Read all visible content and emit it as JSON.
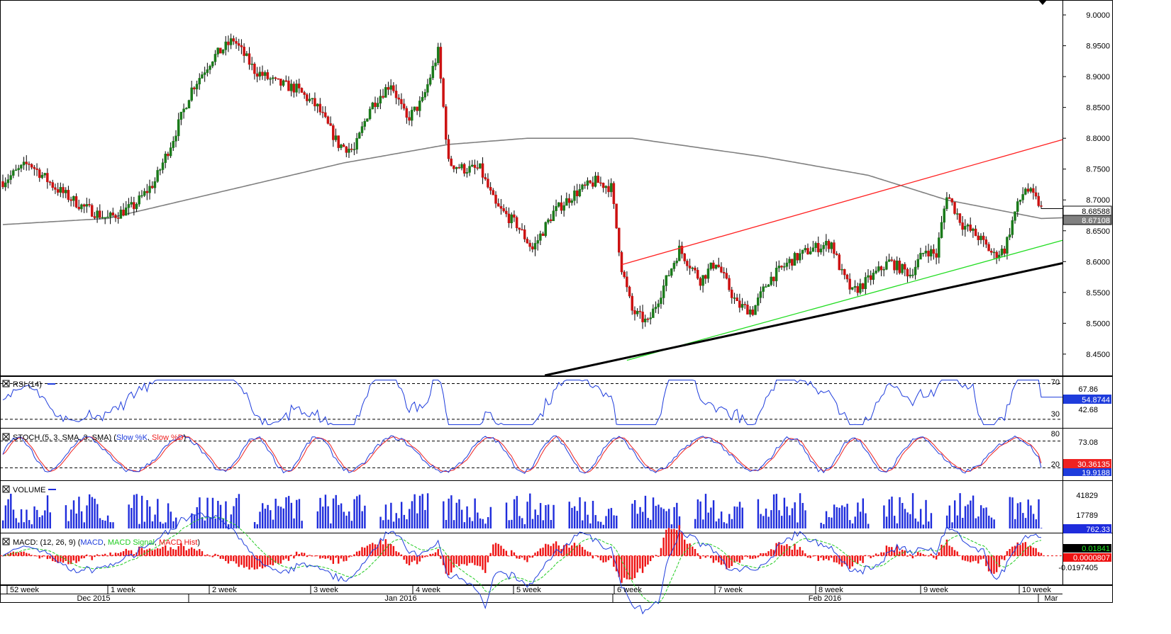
{
  "main": {
    "y_ticks": [
      "9.0000",
      "8.9500",
      "8.9000",
      "8.8500",
      "8.8000",
      "8.7500",
      "8.7000",
      "8.6500",
      "8.6000",
      "8.5500",
      "8.5000",
      "8.4500"
    ],
    "y_range": [
      8.42,
      9.015
    ],
    "last_price": "8.68588",
    "ma_value": "8.67108",
    "last_price_num": 8.68588,
    "ma_value_num": 8.67108,
    "colors": {
      "bull": "#1a7a1a",
      "bear": "#cc1111",
      "ma": "#808080",
      "red_line": "#ff2020",
      "green_line": "#22dd22",
      "black_line": "#000000"
    }
  },
  "rsi": {
    "label": "RSI (14)",
    "levels": [
      "70",
      "30"
    ],
    "axis_labels": [
      "67.86",
      "42.68"
    ],
    "value": "54.8744",
    "value_num": 54.87,
    "range": [
      22,
      76
    ],
    "color": "#1e3cdc"
  },
  "stoch": {
    "label_prefix": "STOCH (5, 3, SMA, 3, SMA) (",
    "k_label": "Slow %K",
    "d_label": "Slow %D",
    "label_suffix": ")",
    "levels": [
      "80",
      "20"
    ],
    "axis_label": "73.08",
    "value_d": "30.36135",
    "value_k": "19.9188",
    "range": [
      -5,
      105
    ],
    "colors": {
      "k": "#1e3cdc",
      "d": "#ee2222"
    }
  },
  "volume": {
    "label": "VOLUME",
    "axis_labels": [
      "41829",
      "17789"
    ],
    "value": "762.33",
    "max": 60000,
    "color": "#1e2cdc"
  },
  "macd": {
    "label_prefix": "MACD: (12, 26, 9) (",
    "macd_label": "MACD",
    "signal_label": "MACD Signal",
    "hist_label": "MACD Hist",
    "label_suffix": ")",
    "values": [
      "0.01841",
      "0.0000807",
      "-0.0197405"
    ],
    "range": [
      -0.04,
      0.03
    ],
    "colors": {
      "macd": "#1e3cdc",
      "signal": "#22cc22",
      "hist": "#ee1111"
    }
  },
  "x_axis": {
    "weeks": [
      "52 week",
      "1 week",
      "2 week",
      "3 week",
      "4 week",
      "5 week",
      "6 week",
      "7 week",
      "8 week",
      "9 week",
      "10 week"
    ],
    "months": [
      "Dec 2015",
      "Jan 2016",
      "Feb 2016",
      "Mar"
    ]
  },
  "chart_data": {
    "type": "candlestick",
    "instrument_axis": "price",
    "anchors_x_y": [
      [
        0,
        8.73
      ],
      [
        10,
        8.76
      ],
      [
        20,
        8.72
      ],
      [
        30,
        8.69
      ],
      [
        40,
        8.67
      ],
      [
        50,
        8.69
      ],
      [
        58,
        8.73
      ],
      [
        65,
        8.8
      ],
      [
        72,
        8.88
      ],
      [
        80,
        8.93
      ],
      [
        88,
        8.96
      ],
      [
        96,
        8.91
      ],
      [
        104,
        8.89
      ],
      [
        112,
        8.88
      ],
      [
        120,
        8.85
      ],
      [
        128,
        8.79
      ],
      [
        134,
        8.78
      ],
      [
        140,
        8.85
      ],
      [
        148,
        8.89
      ],
      [
        154,
        8.83
      ],
      [
        160,
        8.86
      ],
      [
        166,
        8.94
      ],
      [
        170,
        8.76
      ],
      [
        176,
        8.75
      ],
      [
        182,
        8.75
      ],
      [
        188,
        8.69
      ],
      [
        196,
        8.66
      ],
      [
        202,
        8.62
      ],
      [
        210,
        8.68
      ],
      [
        218,
        8.71
      ],
      [
        226,
        8.73
      ],
      [
        232,
        8.72
      ],
      [
        236,
        8.59
      ],
      [
        240,
        8.52
      ],
      [
        246,
        8.5
      ],
      [
        252,
        8.56
      ],
      [
        258,
        8.62
      ],
      [
        266,
        8.57
      ],
      [
        272,
        8.6
      ],
      [
        280,
        8.53
      ],
      [
        286,
        8.52
      ],
      [
        292,
        8.57
      ],
      [
        300,
        8.6
      ],
      [
        308,
        8.62
      ],
      [
        316,
        8.63
      ],
      [
        320,
        8.58
      ],
      [
        324,
        8.55
      ],
      [
        330,
        8.57
      ],
      [
        338,
        8.6
      ],
      [
        346,
        8.58
      ],
      [
        352,
        8.62
      ],
      [
        356,
        8.61
      ],
      [
        360,
        8.71
      ],
      [
        366,
        8.66
      ],
      [
        372,
        8.64
      ],
      [
        378,
        8.61
      ],
      [
        382,
        8.62
      ],
      [
        386,
        8.68
      ],
      [
        390,
        8.72
      ],
      [
        396,
        8.69
      ]
    ],
    "candle_count": 397,
    "trendlines": [
      {
        "name": "red",
        "from": [
          236,
          8.595
        ],
        "to": [
          396,
          8.788
        ]
      },
      {
        "name": "green",
        "from": [
          238,
          8.44
        ],
        "to": [
          396,
          8.625
        ]
      },
      {
        "name": "black",
        "from": [
          190,
          8.4
        ],
        "to": [
          396,
          8.59
        ]
      }
    ],
    "ma200_anchors": [
      [
        0,
        8.66
      ],
      [
        40,
        8.67
      ],
      [
        80,
        8.71
      ],
      [
        130,
        8.76
      ],
      [
        170,
        8.79
      ],
      [
        200,
        8.8
      ],
      [
        240,
        8.8
      ],
      [
        290,
        8.77
      ],
      [
        330,
        8.74
      ],
      [
        360,
        8.7
      ],
      [
        396,
        8.67
      ]
    ]
  }
}
